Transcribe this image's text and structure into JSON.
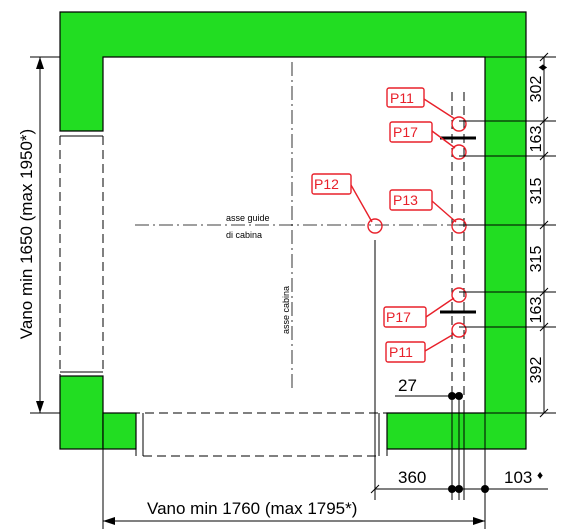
{
  "dimensions": {
    "width_label": "Vano min 1760 (max 1795*)",
    "height_label": "Vano min 1650 (max 1950*)",
    "right_segments": [
      "302",
      "163",
      "315",
      "315",
      "163",
      "392"
    ],
    "diamond_symbol": "♦",
    "bottom_360": "360",
    "bottom_103": "103",
    "inner_27": "27"
  },
  "axes": {
    "guide_axis_line1": "asse guide",
    "guide_axis_line2": "di cabina",
    "car_axis": "asse cabina"
  },
  "points": {
    "p11_top": "P11",
    "p17_top": "P17",
    "p12": "P12",
    "p13": "P13",
    "p17_bottom": "P17",
    "p11_bottom": "P11"
  },
  "colors": {
    "wall": "#22dd22",
    "marker": "#e8202a"
  }
}
